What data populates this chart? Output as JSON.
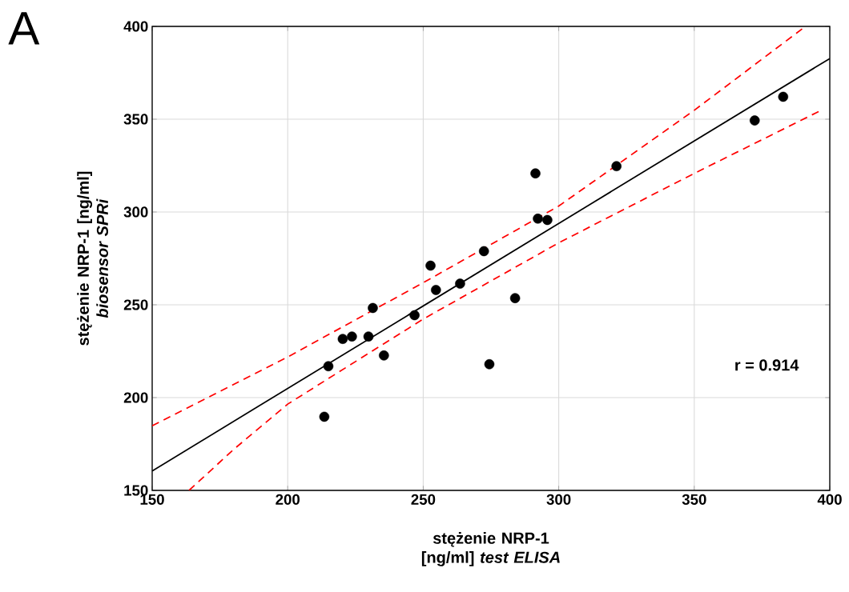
{
  "chart_data": {
    "type": "scatter",
    "xlabel": "stężenie NRP-1 [ng/ml] *test ELISA*",
    "ylabel": "stężenie NRP-1 [ng/ml] *biosensor SPRi*",
    "xlim": [
      150,
      400
    ],
    "ylim": [
      150,
      400
    ],
    "xticks": [
      150,
      200,
      250,
      300,
      350,
      400
    ],
    "yticks": [
      150,
      200,
      250,
      300,
      350,
      400
    ],
    "grid": true,
    "annotations": [
      "A",
      "r = 0.914"
    ],
    "series": [
      {
        "type": "scatter",
        "marker": "circle",
        "color": "#000000",
        "x": [
          213.5,
          215.0,
          220.3,
          223.7,
          229.8,
          231.4,
          235.5,
          246.8,
          252.7,
          254.7,
          263.6,
          272.4,
          274.4,
          283.9,
          291.4,
          292.3,
          295.8,
          321.3,
          372.3,
          382.8
        ],
        "values": [
          189.7,
          216.9,
          231.6,
          232.9,
          232.9,
          248.3,
          222.7,
          244.4,
          271.1,
          258.0,
          261.4,
          278.9,
          218.0,
          253.6,
          320.8,
          296.4,
          295.7,
          324.7,
          349.3,
          362.1
        ]
      },
      {
        "type": "line",
        "marker": "none",
        "line_style": "solid",
        "color": "#000000",
        "x": [
          150,
          400
        ],
        "values": [
          160.5,
          382.7
        ]
      },
      {
        "type": "line",
        "marker": "none",
        "line_style": "dashed",
        "color": "#ff0000",
        "x": [
          150,
          200,
          250,
          300,
          350,
          391
        ],
        "values": [
          184.8,
          221.9,
          261.9,
          303.2,
          354.8,
          400
        ]
      },
      {
        "type": "line",
        "marker": "none",
        "line_style": "dashed",
        "color": "#ff0000",
        "x": [
          163.6,
          180,
          200,
          250,
          300,
          350,
          396
        ],
        "values": [
          150,
          172,
          196.5,
          242.3,
          283.4,
          320.8,
          354.2
        ]
      }
    ]
  }
}
